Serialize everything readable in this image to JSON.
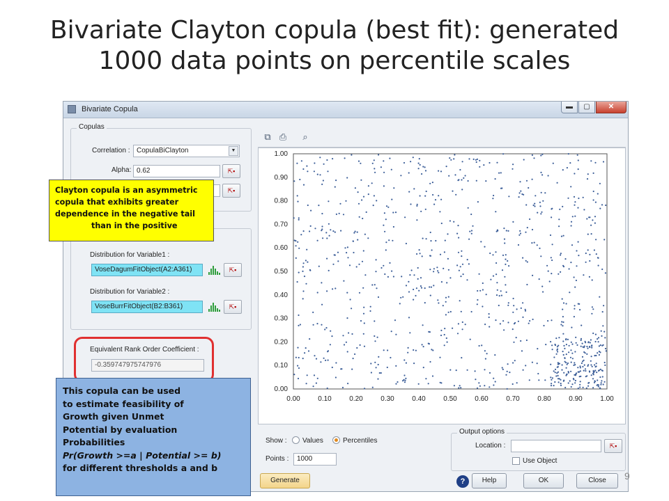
{
  "slide": {
    "title_line1": "Bivariate Clayton copula (best fit): generated",
    "title_line2": "1000 data points on percentile scales",
    "page_number": "9"
  },
  "window": {
    "title": "Bivariate Copula",
    "buttons": {
      "minimize": "▬",
      "maximize": "▢",
      "close": "✕"
    }
  },
  "copulas": {
    "group_label": "Copulas",
    "correlation_label": "Correlation :",
    "correlation_value": "CopulaBiClayton",
    "alpha_label": "Alpha:",
    "alpha_value": "0.62"
  },
  "distributions": {
    "var1_label": "Distribution for Variable1 :",
    "var1_value": "VoseDagumFitObject(A2:A361)",
    "var2_label": "Distribution for Variable2 :",
    "var2_value": "VoseBurrFitObject(B2:B361)"
  },
  "rank_order": {
    "label": "Equivalent Rank Order Coefficient :",
    "value": "-0.359747975747976"
  },
  "callouts": {
    "yellow_lines": [
      "Clayton copula is an asymmetric",
      "copula that exhibits greater",
      "dependence in the negative tail",
      "than in the positive"
    ],
    "blue_lines": [
      "This copula can be used",
      "to estimate feasibility of",
      "Growth given Unmet",
      "Potential by evaluation",
      "Probabilities",
      "Pr(Growth >=a | Potential >= b)",
      "for different thresholds a and b"
    ]
  },
  "show": {
    "label": "Show :",
    "option_values": "Values",
    "option_percentiles": "Percentiles",
    "selected": "Percentiles"
  },
  "points": {
    "label": "Points :",
    "value": "1000"
  },
  "output_options": {
    "group_label": "Output options",
    "location_label": "Location :",
    "location_value": "",
    "use_object_label": "Use Object"
  },
  "buttons": {
    "generate": "Generate",
    "help": "Help",
    "ok": "OK",
    "close": "Close"
  },
  "icons": {
    "toolbar": [
      "copy-icon",
      "print-icon",
      "zoom-icon"
    ],
    "help": "question-icon"
  },
  "chart_data": {
    "type": "scatter",
    "n_points": 1000,
    "point_color": "#3d5f99",
    "xlim": [
      0,
      1
    ],
    "ylim": [
      0,
      1
    ],
    "x_ticks": [
      "0.00",
      "0.10",
      "0.20",
      "0.30",
      "0.40",
      "0.50",
      "0.60",
      "0.70",
      "0.80",
      "0.90",
      "1.00"
    ],
    "y_ticks": [
      "1.00",
      "0.90",
      "0.80",
      "0.70",
      "0.60",
      "0.50",
      "0.40",
      "0.30",
      "0.20",
      "0.10",
      "0.00"
    ],
    "grid": false,
    "dependence": "negative",
    "note": "1000 random percentile points with denser clustering toward the lower-right corner"
  }
}
